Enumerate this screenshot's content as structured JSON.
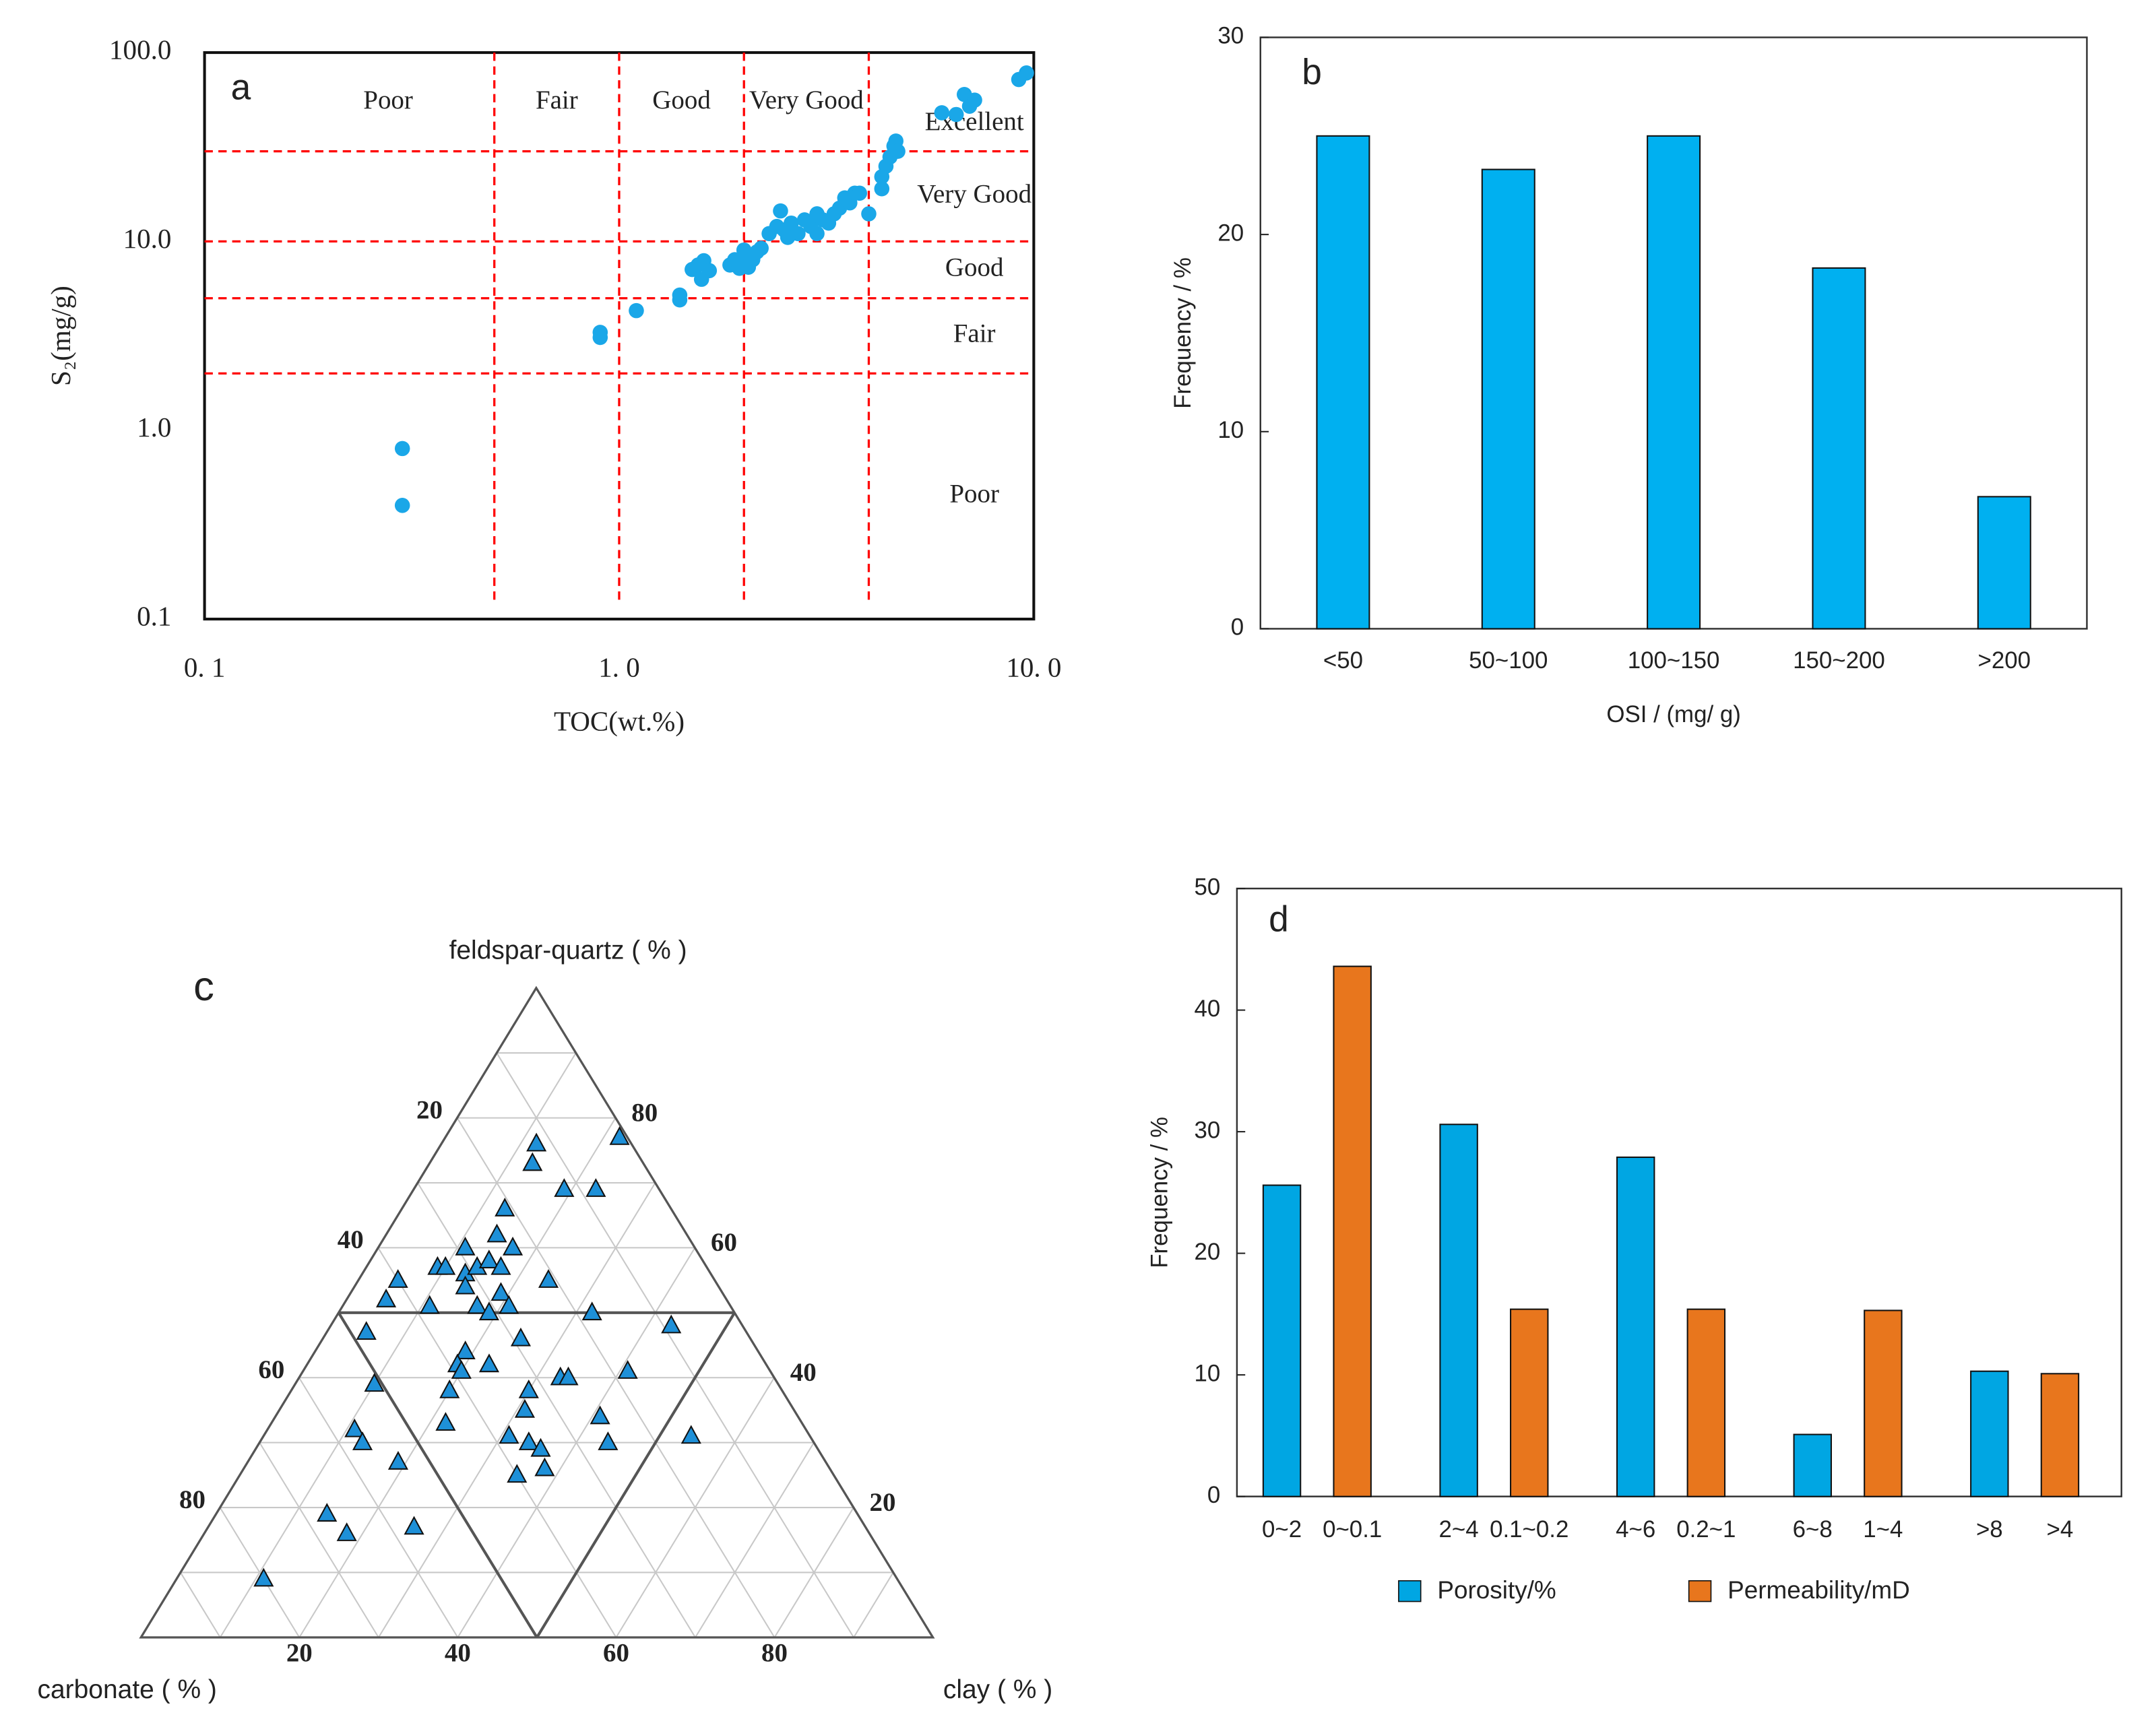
{
  "chart_data": [
    {
      "type": "scatter",
      "label": "a",
      "xscale": "log",
      "yscale": "log",
      "xlabel": "TOC(wt.%)",
      "ylabel": "S₂(mg/g)",
      "xlim": [
        0.1,
        10
      ],
      "ylim": [
        0.1,
        100
      ],
      "xticks": [
        {
          "value": 0.1,
          "label": "0. 1"
        },
        {
          "value": 1,
          "label": "1. 0"
        },
        {
          "value": 10,
          "label": "10. 0"
        }
      ],
      "yticks": [
        {
          "value": 0.1,
          "label": "0.1"
        },
        {
          "value": 1,
          "label": "1.0"
        },
        {
          "value": 10,
          "label": "10.0"
        },
        {
          "value": 100,
          "label": "100.0"
        }
      ],
      "x_thresholds": [
        0.5,
        1,
        2,
        4
      ],
      "y_thresholds": [
        2,
        5,
        10,
        30
      ],
      "threshold_color": "#ff0000",
      "x_region_labels": [
        "Poor",
        "Fair",
        "Good",
        "Very Good"
      ],
      "y_region_labels": [
        "Poor",
        "Fair",
        "Good",
        "Very Good",
        "Excellent"
      ],
      "color": "#1aa7e8",
      "x": [
        0.3,
        0.3,
        0.9,
        0.9,
        1.1,
        1.4,
        1.4,
        1.5,
        1.55,
        1.6,
        1.58,
        1.65,
        1.85,
        1.9,
        1.95,
        2.0,
        2.0,
        2.05,
        2.1,
        2.15,
        2.2,
        2.3,
        2.4,
        2.45,
        2.5,
        2.55,
        2.6,
        2.7,
        2.8,
        2.9,
        3.0,
        3.0,
        3.1,
        3.2,
        3.3,
        3.4,
        3.5,
        3.6,
        3.7,
        3.8,
        4.0,
        4.3,
        4.3,
        4.4,
        4.5,
        4.6,
        4.65,
        4.7,
        6.0,
        6.5,
        6.8,
        7.0,
        7.2,
        9.2,
        9.6
      ],
      "y": [
        0.8,
        0.4,
        3.3,
        3.1,
        4.3,
        5.2,
        4.9,
        7.1,
        7.5,
        7.9,
        6.3,
        7.0,
        7.5,
        8.0,
        7.2,
        8.5,
        9.0,
        7.3,
        8.0,
        8.8,
        9.2,
        11,
        12,
        14.5,
        11.5,
        10.5,
        12.5,
        11,
        13,
        12,
        14,
        11,
        13,
        12.5,
        14,
        15,
        17,
        16,
        18,
        18,
        14,
        19,
        22,
        25,
        28,
        32,
        34,
        30,
        48,
        47,
        60,
        52,
        56,
        72,
        78
      ]
    },
    {
      "type": "bar",
      "label": "b",
      "xlabel": "OSI / (mg/ g)",
      "ylabel": "Frequency / %",
      "categories": [
        "<50",
        "50~100",
        "100~150",
        "150~200",
        ">200"
      ],
      "values": [
        25,
        23.3,
        25,
        18.3,
        6.7
      ],
      "color": "#00b0f0",
      "ylim": [
        0,
        30
      ],
      "yticks": [
        0,
        10,
        20,
        30
      ]
    },
    {
      "type": "ternary",
      "label": "c",
      "axis_labels": {
        "top": "feldspar-quartz ( % )",
        "left": "carbonate ( % )",
        "right": "clay ( % )"
      },
      "ticks": [
        20,
        40,
        60,
        80
      ],
      "grid_step": 10,
      "region_boundary": 50,
      "color": "#1e90d8",
      "fq": [
        76,
        73,
        77,
        69,
        69,
        66,
        60,
        62,
        60,
        57,
        57,
        56,
        57,
        58,
        57,
        55,
        52,
        51,
        54,
        51,
        50,
        53,
        51,
        55,
        50,
        48,
        47,
        46,
        44,
        42,
        42,
        41,
        39,
        41,
        40,
        40,
        38,
        38,
        35,
        33,
        34,
        32,
        30,
        31,
        30,
        29,
        30,
        31,
        27,
        26,
        25,
        19,
        16,
        17,
        9
      ],
      "carbonate": [
        12,
        14,
        1,
        12,
        8,
        21,
        29,
        24,
        23,
        34,
        33,
        31,
        29,
        27,
        26,
        40,
        43,
        38,
        32,
        32,
        31,
        28,
        28,
        21,
        18,
        9,
        48,
        29,
        37,
        35,
        39,
        39,
        51,
        18,
        27,
        26,
        32,
        42,
        34,
        45,
        25,
        57,
        57,
        38,
        36,
        35,
        26,
        15,
        54,
        36,
        40,
        67,
        66,
        57,
        80
      ],
      "clay": [
        12,
        13,
        22,
        19,
        23,
        13,
        11,
        14,
        17,
        9,
        10,
        13,
        14,
        15,
        17,
        5,
        5,
        11,
        14,
        17,
        19,
        19,
        21,
        24,
        32,
        43,
        5,
        25,
        19,
        23,
        19,
        20,
        10,
        41,
        33,
        34,
        30,
        20,
        31,
        22,
        41,
        11,
        13,
        31,
        34,
        36,
        44,
        54,
        19,
        38,
        35,
        14,
        18,
        26,
        11
      ]
    },
    {
      "type": "bar",
      "label": "d",
      "ylabel": "Frequency / %",
      "legend": "bottom",
      "ylim": [
        0,
        50
      ],
      "yticks": [
        0,
        10,
        20,
        30,
        40,
        50
      ],
      "series": [
        {
          "name": "Porosity/%",
          "color": "#00a6e3",
          "categories": [
            "0~2",
            "2~4",
            "4~6",
            "6~8",
            ">8"
          ],
          "values": [
            25.6,
            30.6,
            27.9,
            5.1,
            10.3
          ]
        },
        {
          "name": "Permeability/mD",
          "color": "#e8761d",
          "categories": [
            "0~0.1",
            "0.1~0.2",
            "0.2~1",
            "1~4",
            ">4"
          ],
          "values": [
            43.6,
            15.4,
            15.4,
            15.3,
            10.1
          ]
        }
      ]
    }
  ]
}
